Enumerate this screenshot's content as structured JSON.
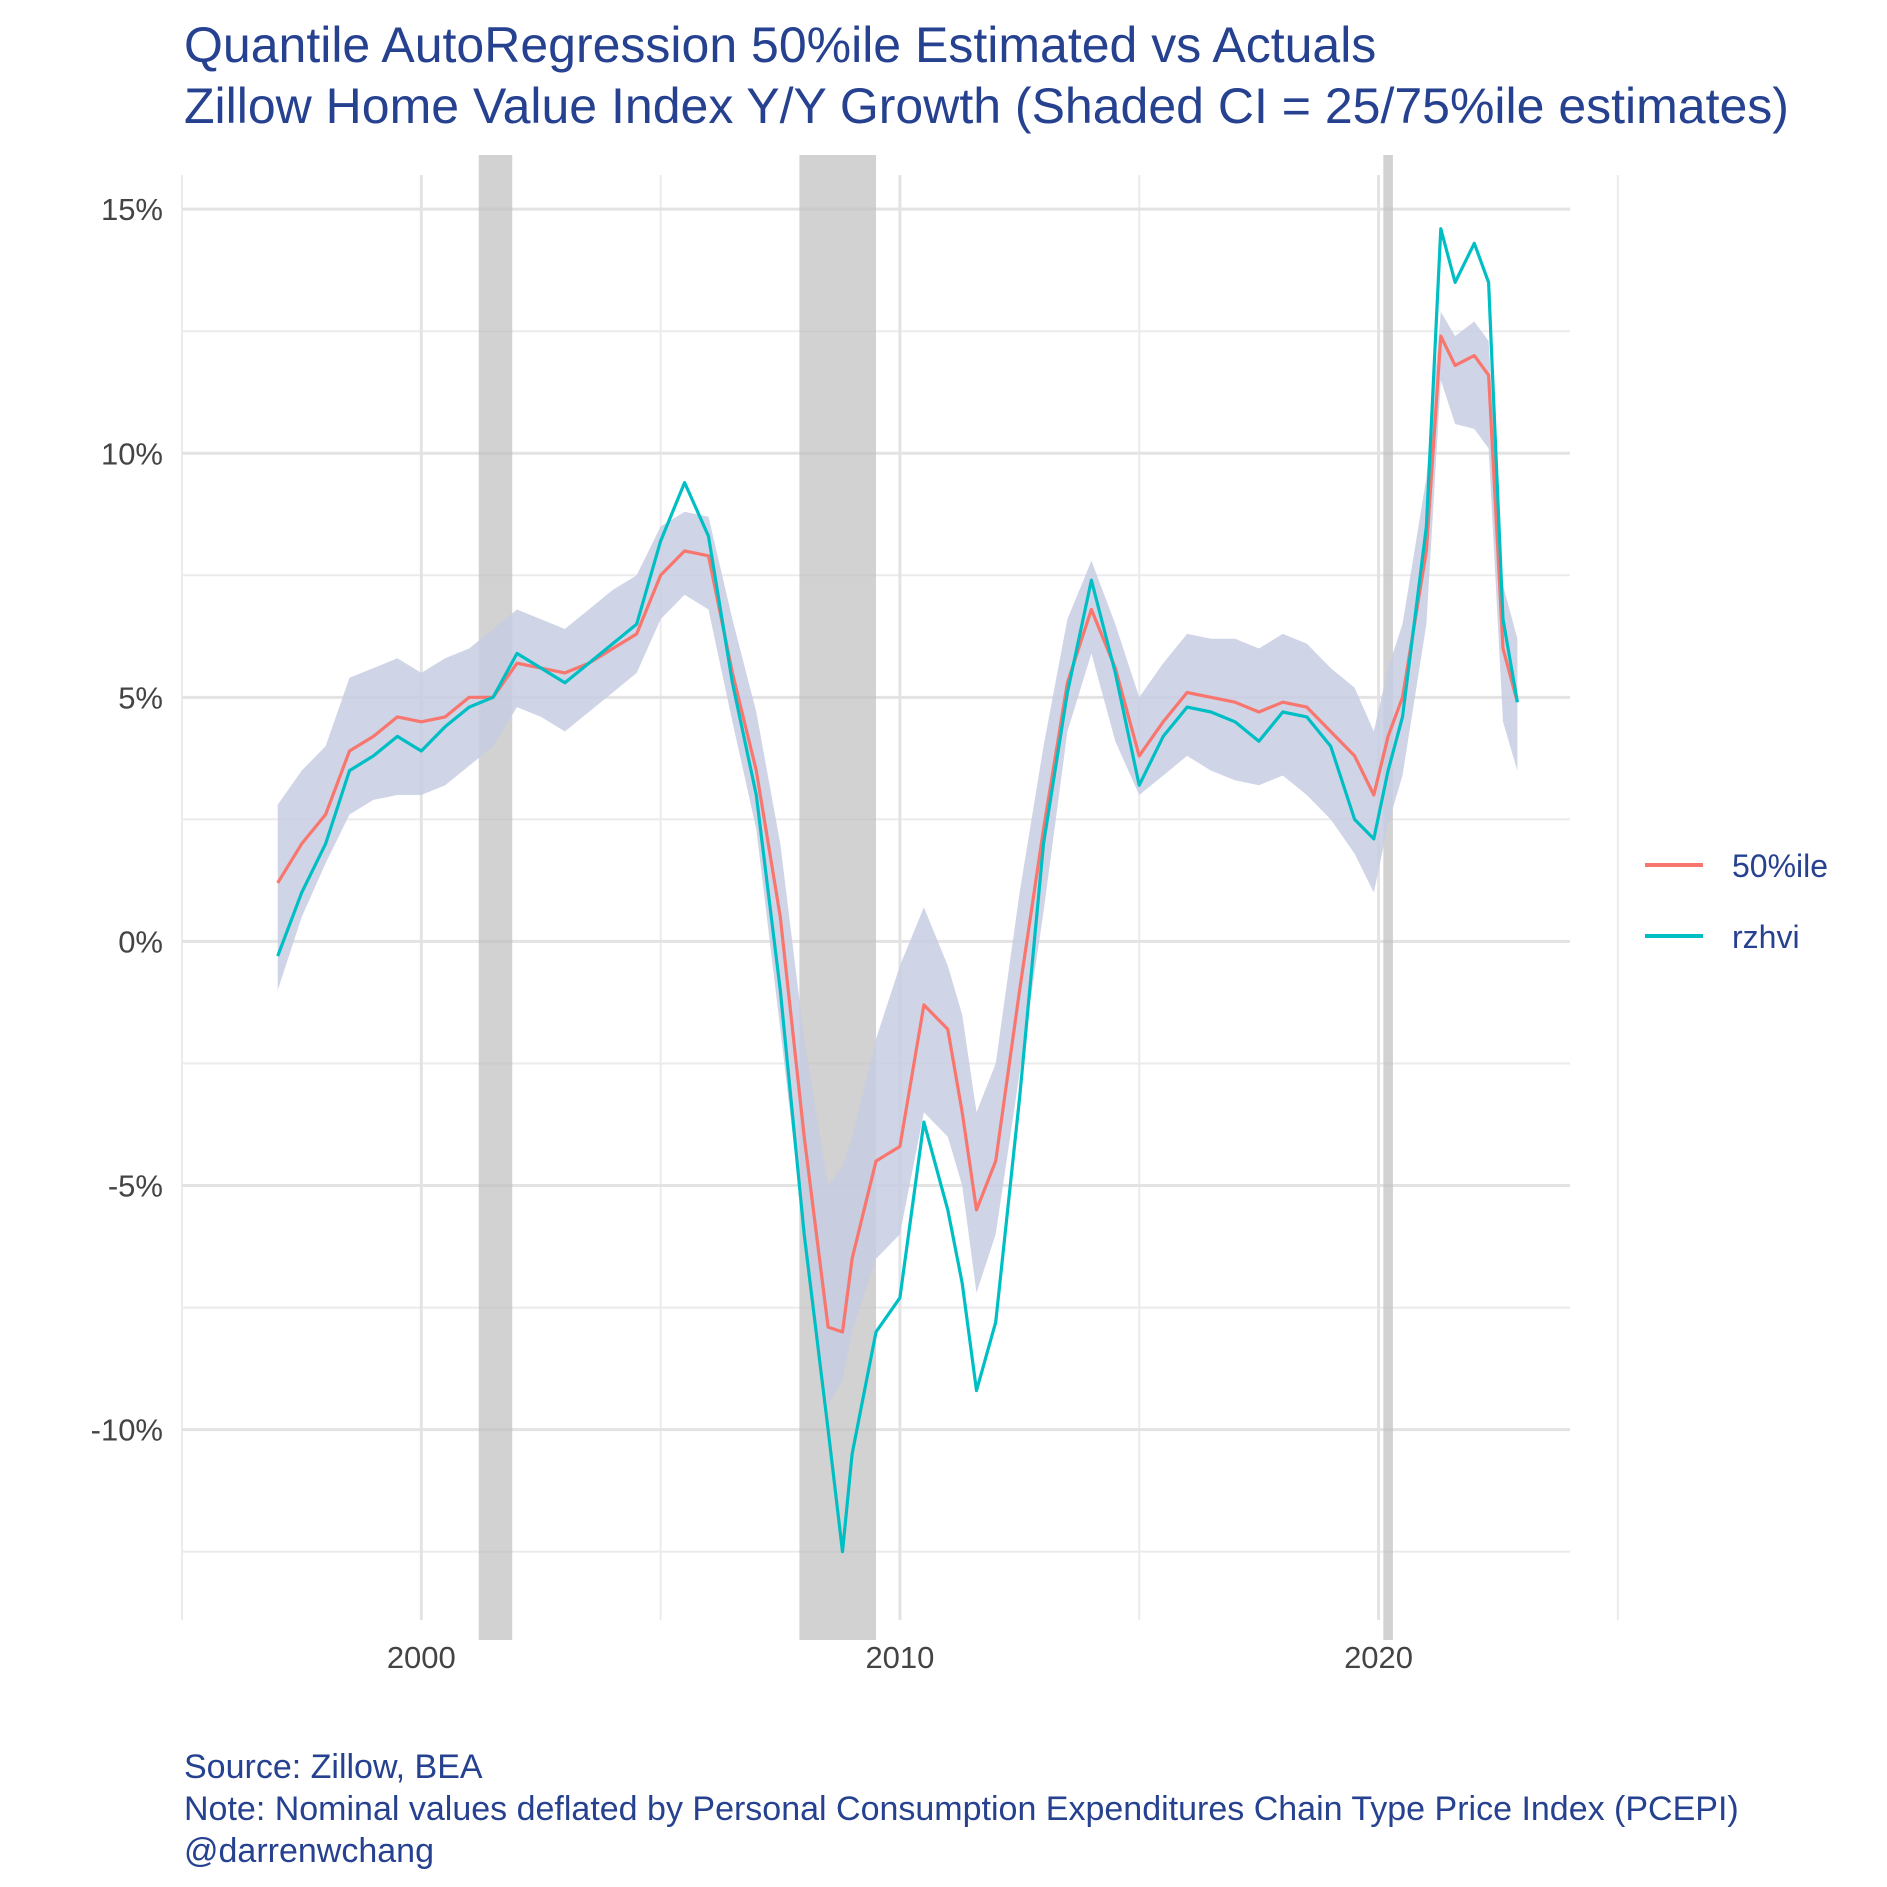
{
  "chart_data": {
    "type": "line",
    "title": "Quantile AutoRegression 50%ile Estimated vs Actuals",
    "subtitle": "Zillow Home Value Index Y/Y Growth (Shaded CI = 25/75%ile estimates)",
    "caption": [
      "Source: Zillow, BEA",
      "Note: Nominal values deflated by Personal Consumption Expenditures Chain Type Price Index (PCEPI)",
      "@darrenwchang"
    ],
    "xlabel": "",
    "ylabel": "",
    "x_ticks": [
      {
        "value": 2000,
        "label": "2000"
      },
      {
        "value": 2010,
        "label": "2010"
      },
      {
        "value": 2020,
        "label": "2020"
      }
    ],
    "y_ticks": [
      {
        "value": 15,
        "label": "15%"
      },
      {
        "value": 10,
        "label": "10%"
      },
      {
        "value": 5,
        "label": "5%"
      },
      {
        "value": 0,
        "label": "0%"
      },
      {
        "value": -5,
        "label": "-5%"
      },
      {
        "value": -10,
        "label": "-10%"
      }
    ],
    "xlim": [
      1995,
      2024
    ],
    "ylim": [
      -13.9,
      15.7
    ],
    "grid": true,
    "legend_position": "right",
    "recessions": [
      [
        2001.2,
        2001.9
      ],
      [
        2007.9,
        2009.5
      ],
      [
        2020.1,
        2020.3
      ]
    ],
    "colors": {
      "median": "#f8766d",
      "actual": "#00bfc4",
      "ci": "#c7cde2",
      "recession": "#bfbfbf"
    },
    "x": [
      1997.0,
      1997.5,
      1998.0,
      1998.5,
      1999.0,
      1999.5,
      2000.0,
      2000.5,
      2001.0,
      2001.5,
      2002.0,
      2002.5,
      2003.0,
      2003.5,
      2004.0,
      2004.5,
      2005.0,
      2005.5,
      2006.0,
      2006.5,
      2007.0,
      2007.5,
      2008.0,
      2008.5,
      2008.8,
      2009.0,
      2009.5,
      2010.0,
      2010.5,
      2011.0,
      2011.3,
      2011.6,
      2012.0,
      2012.5,
      2013.0,
      2013.5,
      2014.0,
      2014.5,
      2015.0,
      2015.5,
      2016.0,
      2016.5,
      2017.0,
      2017.5,
      2018.0,
      2018.5,
      2019.0,
      2019.5,
      2019.9,
      2020.2,
      2020.5,
      2021.0,
      2021.3,
      2021.6,
      2022.0,
      2022.3,
      2022.6,
      2022.9
    ],
    "series": [
      {
        "name": "50%ile",
        "values": [
          1.2,
          2.0,
          2.6,
          3.9,
          4.2,
          4.6,
          4.5,
          4.6,
          5.0,
          5.0,
          5.7,
          5.6,
          5.5,
          5.7,
          6.0,
          6.3,
          7.5,
          8.0,
          7.9,
          5.5,
          3.5,
          0.5,
          -4.0,
          -7.9,
          -8.0,
          -6.5,
          -4.5,
          -4.2,
          -1.3,
          -1.8,
          -3.5,
          -5.5,
          -4.5,
          -1.0,
          2.3,
          5.3,
          6.8,
          5.6,
          3.8,
          4.5,
          5.1,
          5.0,
          4.9,
          4.7,
          4.9,
          4.8,
          4.3,
          3.8,
          3.0,
          4.2,
          5.0,
          8.0,
          12.4,
          11.8,
          12.0,
          11.6,
          6.0,
          4.9
        ]
      },
      {
        "name": "rzhvi",
        "values": [
          -0.3,
          1.0,
          2.0,
          3.5,
          3.8,
          4.2,
          3.9,
          4.4,
          4.8,
          5.0,
          5.9,
          5.6,
          5.3,
          5.7,
          6.1,
          6.5,
          8.2,
          9.4,
          8.3,
          5.3,
          3.0,
          -1.0,
          -6.0,
          -10.0,
          -12.5,
          -10.5,
          -8.0,
          -7.3,
          -3.7,
          -5.5,
          -7.0,
          -9.2,
          -7.8,
          -3.2,
          2.0,
          5.1,
          7.4,
          5.5,
          3.2,
          4.2,
          4.8,
          4.7,
          4.5,
          4.1,
          4.7,
          4.6,
          4.0,
          2.5,
          2.1,
          3.5,
          4.6,
          8.5,
          14.6,
          13.5,
          14.3,
          13.5,
          6.6,
          4.9
        ]
      }
    ],
    "ci": {
      "lower": [
        -1.0,
        0.5,
        1.6,
        2.6,
        2.9,
        3.0,
        3.0,
        3.2,
        3.6,
        4.0,
        4.8,
        4.6,
        4.3,
        4.7,
        5.1,
        5.5,
        6.6,
        7.1,
        6.8,
        4.5,
        2.3,
        -1.8,
        -6.0,
        -9.5,
        -9.0,
        -8.0,
        -6.5,
        -6.0,
        -3.5,
        -4.0,
        -5.0,
        -7.2,
        -6.0,
        -2.7,
        0.6,
        4.3,
        5.9,
        4.1,
        3.0,
        3.4,
        3.8,
        3.5,
        3.3,
        3.2,
        3.4,
        3.0,
        2.5,
        1.8,
        1.0,
        2.4,
        3.4,
        6.5,
        11.5,
        10.6,
        10.5,
        10.1,
        4.5,
        3.5
      ],
      "upper": [
        2.8,
        3.5,
        4.0,
        5.4,
        5.6,
        5.8,
        5.5,
        5.8,
        6.0,
        6.4,
        6.8,
        6.6,
        6.4,
        6.8,
        7.2,
        7.5,
        8.5,
        8.8,
        8.7,
        6.6,
        4.7,
        2.0,
        -2.0,
        -5.0,
        -4.6,
        -4.0,
        -2.0,
        -0.5,
        0.7,
        -0.5,
        -1.5,
        -3.5,
        -2.5,
        1.0,
        4.0,
        6.6,
        7.8,
        6.5,
        5.0,
        5.7,
        6.3,
        6.2,
        6.2,
        6.0,
        6.3,
        6.1,
        5.6,
        5.2,
        4.3,
        5.6,
        6.5,
        9.5,
        12.9,
        12.4,
        12.7,
        12.3,
        7.3,
        6.2
      ]
    }
  }
}
